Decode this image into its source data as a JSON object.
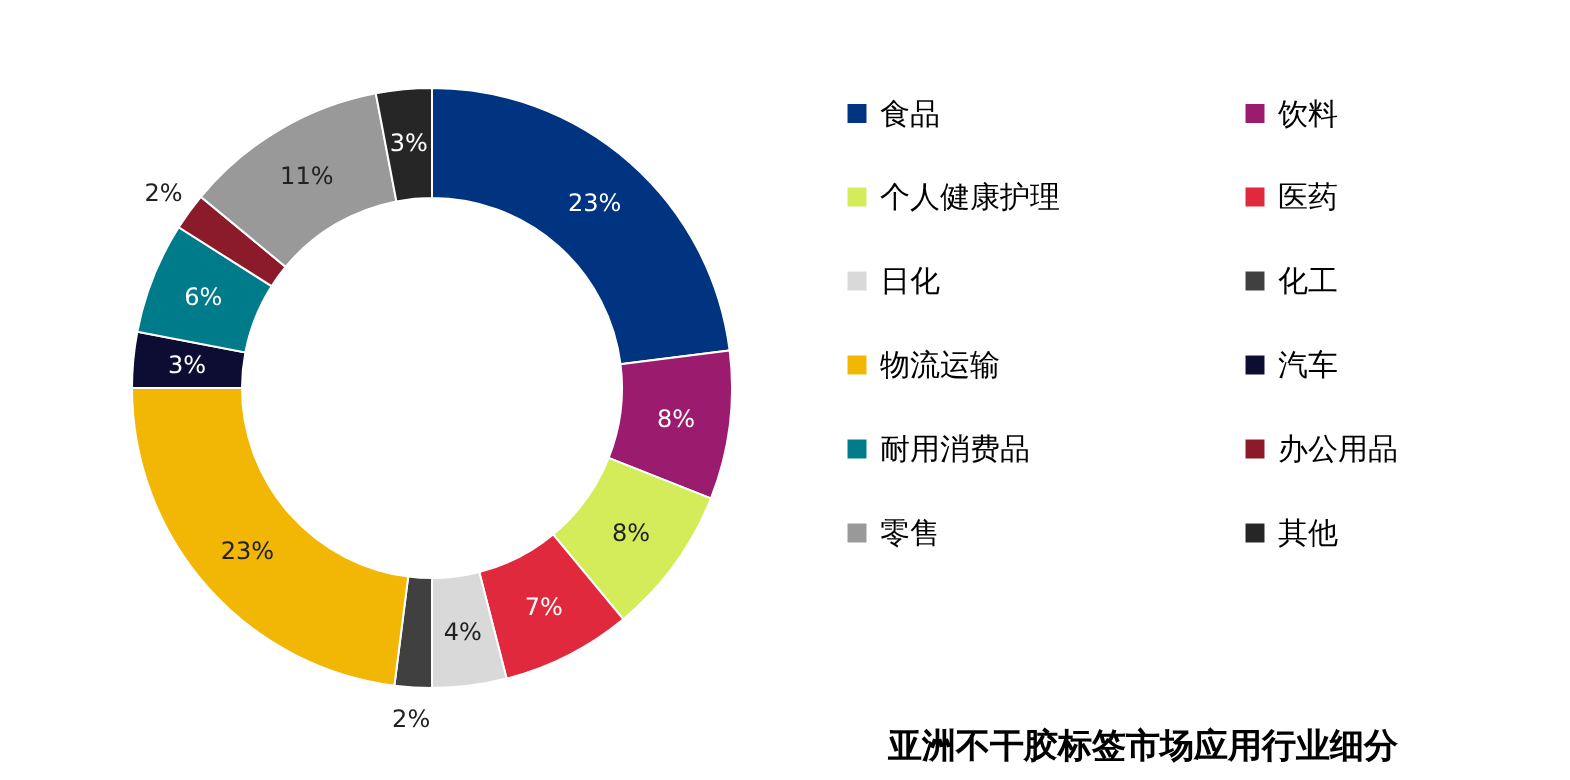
{
  "chart_data": {
    "type": "donut",
    "title": "亚洲不干胶标签市场应用行业细分",
    "categories": [
      "食品",
      "饮料",
      "个人健康护理",
      "医药",
      "日化",
      "化工",
      "物流运输",
      "汽车",
      "耐用消费品",
      "办公用品",
      "零售",
      "其他"
    ],
    "values": [
      23,
      8,
      8,
      7,
      4,
      2,
      23,
      3,
      6,
      2,
      11,
      3
    ],
    "colors": [
      "#003380",
      "#9b1b6e",
      "#d4ec59",
      "#e0293c",
      "#d9d9d9",
      "#404040",
      "#f2b705",
      "#0d0d33",
      "#007b8a",
      "#8b1a2b",
      "#999999",
      "#262626"
    ],
    "value_labels": [
      "23%",
      "8%",
      "8%",
      "7%",
      "4%",
      "2%",
      "23%",
      "3%",
      "6%",
      "2%",
      "11%",
      "3%"
    ],
    "legend": "right"
  }
}
